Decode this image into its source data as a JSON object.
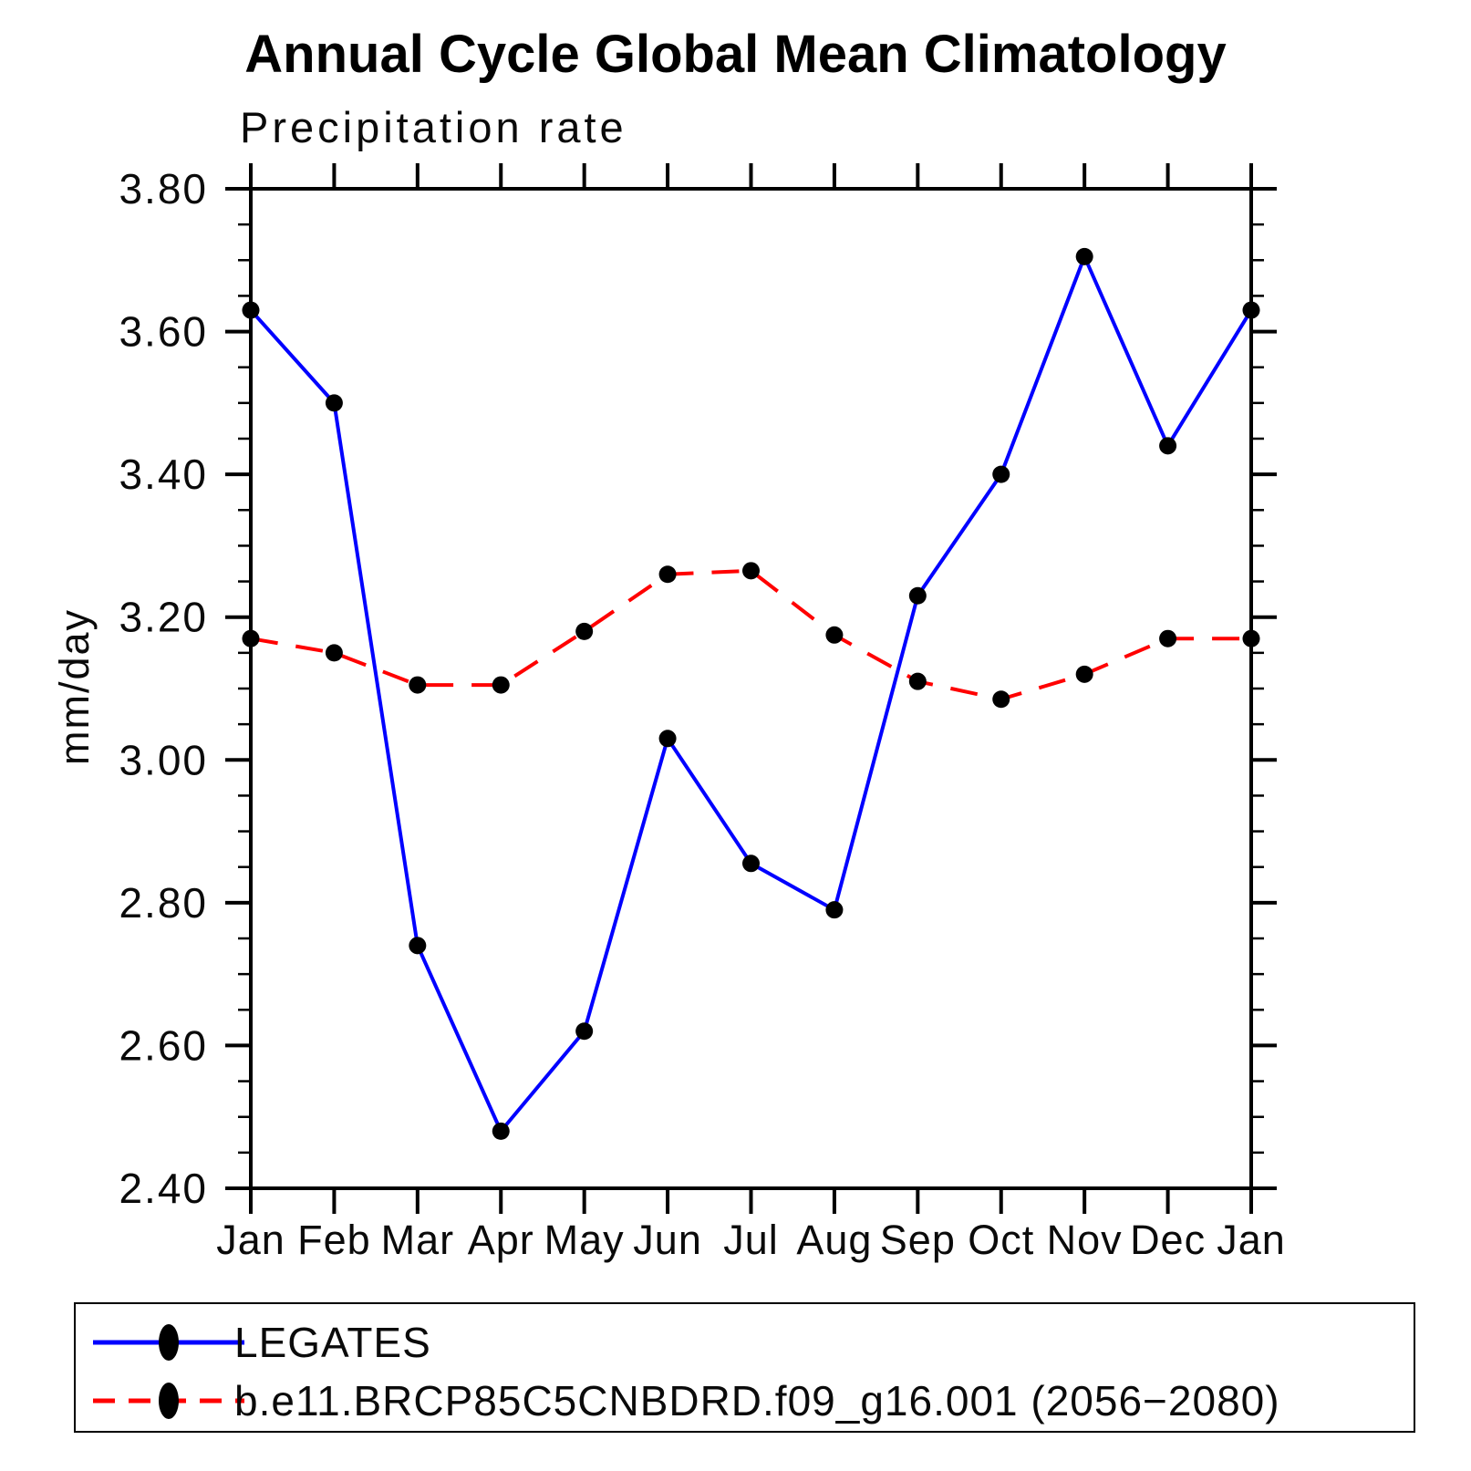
{
  "title": "Annual Cycle Global Mean Climatology",
  "subtitle": "Precipitation rate",
  "ylabel": "mm/day",
  "colors": {
    "background": "#ffffff",
    "axis": "#000000",
    "series1": "#0000ff",
    "series2": "#ff0000",
    "marker": "#000000"
  },
  "chart_data": {
    "type": "line",
    "title": "Annual Cycle Global Mean Climatology",
    "subtitle": "Precipitation rate",
    "ylabel": "mm/day",
    "xlabel": "",
    "grid": false,
    "legend_position": "bottom",
    "ylim": [
      2.4,
      3.8
    ],
    "ytick_major_step": 0.2,
    "ytick_minor_step": 0.05,
    "ytick_labels": [
      "3.80",
      "3.60",
      "3.40",
      "3.20",
      "3.00",
      "2.80",
      "2.60",
      "2.40"
    ],
    "categories": [
      "Jan",
      "Feb",
      "Mar",
      "Apr",
      "May",
      "Jun",
      "Jul",
      "Aug",
      "Sep",
      "Oct",
      "Nov",
      "Dec",
      "Jan"
    ],
    "series": [
      {
        "name": "LEGATES",
        "color": "#0000ff",
        "line_style": "solid",
        "marker": "filled-circle",
        "marker_color": "#000000",
        "values": [
          3.63,
          3.5,
          2.74,
          2.48,
          2.62,
          3.03,
          2.855,
          2.79,
          3.23,
          3.4,
          3.705,
          3.44,
          3.63
        ]
      },
      {
        "name": "b.e11.BRCP85C5CNBDRD.f09_g16.001 (2056−2080)",
        "color": "#ff0000",
        "line_style": "dashed",
        "marker": "filled-circle",
        "marker_color": "#000000",
        "values": [
          3.17,
          3.15,
          3.105,
          3.105,
          3.18,
          3.26,
          3.265,
          3.175,
          3.11,
          3.085,
          3.12,
          3.17,
          3.17
        ]
      }
    ]
  }
}
